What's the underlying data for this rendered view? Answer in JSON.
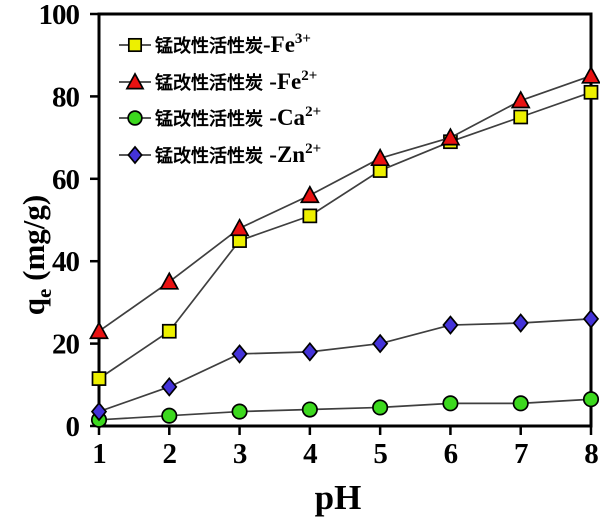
{
  "figure": {
    "xlabel": "pH",
    "ylabel": {
      "main": "q",
      "sub": "e",
      "rest": " (mg/g)"
    }
  },
  "chart_data": {
    "type": "line",
    "title": "",
    "xlabel": "pH",
    "ylabel": "qe (mg/g)",
    "x": [
      1,
      2,
      3,
      4,
      5,
      6,
      7,
      8
    ],
    "xlim": [
      1,
      8
    ],
    "ylim": [
      0,
      100
    ],
    "x_ticks": [
      1,
      2,
      3,
      4,
      5,
      6,
      7,
      8
    ],
    "y_ticks": [
      0,
      20,
      40,
      60,
      80,
      100
    ],
    "grid": false,
    "legend_position": "upper-left-inside",
    "axis_color": "#000000",
    "line_color": "#3f3f3f",
    "series": [
      {
        "id": "fe3",
        "label_cn": "锰改性活性炭",
        "ion": "-Fe",
        "charge": "3+",
        "marker": "square",
        "fill": "#edf000",
        "edge": "#000000",
        "values": [
          11.5,
          23,
          45,
          51,
          62,
          69,
          75,
          81
        ]
      },
      {
        "id": "fe2",
        "label_cn": "锰改性活性炭 ",
        "ion": "-Fe",
        "charge": "2+",
        "marker": "triangle",
        "fill": "#e81212",
        "edge": "#000000",
        "values": [
          23,
          35,
          48,
          56,
          65,
          70,
          79,
          85
        ]
      },
      {
        "id": "ca2",
        "label_cn": "锰改性活性炭 ",
        "ion": "-Ca",
        "charge": "2+",
        "marker": "circle",
        "fill": "#3cd81e",
        "edge": "#000000",
        "values": [
          1.5,
          2.5,
          3.5,
          4,
          4.5,
          5.5,
          5.5,
          6.5
        ]
      },
      {
        "id": "zn2",
        "label_cn": "锰改性活性炭 ",
        "ion": "-Zn",
        "charge": "2+",
        "marker": "diamond",
        "fill": "#4433d9",
        "edge": "#000000",
        "values": [
          3.5,
          9.5,
          17.5,
          18,
          20,
          24.5,
          25,
          26
        ]
      }
    ]
  }
}
